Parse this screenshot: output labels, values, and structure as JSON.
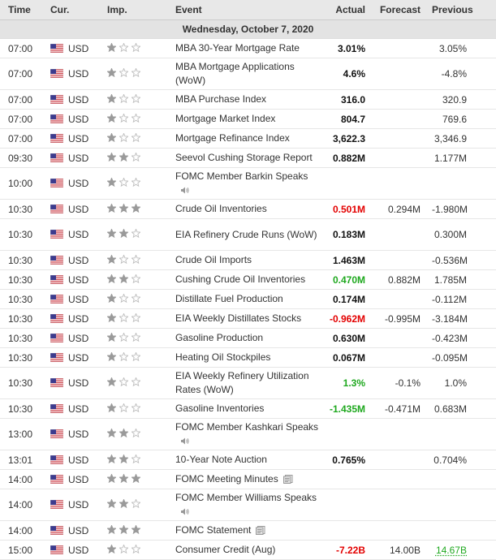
{
  "headers": {
    "time": "Time",
    "currency": "Cur.",
    "importance": "Imp.",
    "event": "Event",
    "actual": "Actual",
    "forecast": "Forecast",
    "previous": "Previous"
  },
  "date_label": "Wednesday, October 7, 2020",
  "colors": {
    "negative": "#e30000",
    "positive": "#1ea81e"
  },
  "rows": [
    {
      "time": "07:00",
      "currency": "USD",
      "importance": 1,
      "event": "MBA 30-Year Mortgage Rate",
      "actual": "3.01%",
      "actual_color": "",
      "forecast": "",
      "previous": "3.05%",
      "icon": "",
      "tall": false
    },
    {
      "time": "07:00",
      "currency": "USD",
      "importance": 1,
      "event": "MBA Mortgage Applications (WoW)",
      "actual": "4.6%",
      "actual_color": "",
      "forecast": "",
      "previous": "-4.8%",
      "icon": "",
      "tall": true
    },
    {
      "time": "07:00",
      "currency": "USD",
      "importance": 1,
      "event": "MBA Purchase Index",
      "actual": "316.0",
      "actual_color": "",
      "forecast": "",
      "previous": "320.9",
      "icon": "",
      "tall": false
    },
    {
      "time": "07:00",
      "currency": "USD",
      "importance": 1,
      "event": "Mortgage Market Index",
      "actual": "804.7",
      "actual_color": "",
      "forecast": "",
      "previous": "769.6",
      "icon": "",
      "tall": false
    },
    {
      "time": "07:00",
      "currency": "USD",
      "importance": 1,
      "event": "Mortgage Refinance Index",
      "actual": "3,622.3",
      "actual_color": "",
      "forecast": "",
      "previous": "3,346.9",
      "icon": "",
      "tall": false
    },
    {
      "time": "09:30",
      "currency": "USD",
      "importance": 2,
      "event": "Seevol Cushing Storage Report",
      "actual": "0.882M",
      "actual_color": "",
      "forecast": "",
      "previous": "1.177M",
      "icon": "",
      "tall": false
    },
    {
      "time": "10:00",
      "currency": "USD",
      "importance": 1,
      "event": "FOMC Member Barkin Speaks",
      "actual": "",
      "actual_color": "",
      "forecast": "",
      "previous": "",
      "icon": "speaker",
      "tall": true
    },
    {
      "time": "10:30",
      "currency": "USD",
      "importance": 3,
      "event": "Crude Oil Inventories",
      "actual": "0.501M",
      "actual_color": "red",
      "forecast": "0.294M",
      "previous": "-1.980M",
      "icon": "",
      "tall": false
    },
    {
      "time": "10:30",
      "currency": "USD",
      "importance": 2,
      "event": "EIA Refinery Crude Runs (WoW)",
      "actual": "0.183M",
      "actual_color": "",
      "forecast": "",
      "previous": "0.300M",
      "icon": "",
      "tall": true
    },
    {
      "time": "10:30",
      "currency": "USD",
      "importance": 1,
      "event": "Crude Oil Imports",
      "actual": "1.463M",
      "actual_color": "",
      "forecast": "",
      "previous": "-0.536M",
      "icon": "",
      "tall": false
    },
    {
      "time": "10:30",
      "currency": "USD",
      "importance": 2,
      "event": "Cushing Crude Oil Inventories",
      "actual": "0.470M",
      "actual_color": "green",
      "forecast": "0.882M",
      "previous": "1.785M",
      "icon": "",
      "tall": false
    },
    {
      "time": "10:30",
      "currency": "USD",
      "importance": 1,
      "event": "Distillate Fuel Production",
      "actual": "0.174M",
      "actual_color": "",
      "forecast": "",
      "previous": "-0.112M",
      "icon": "",
      "tall": false
    },
    {
      "time": "10:30",
      "currency": "USD",
      "importance": 1,
      "event": "EIA Weekly Distillates Stocks",
      "actual": "-0.962M",
      "actual_color": "red",
      "forecast": "-0.995M",
      "previous": "-3.184M",
      "icon": "",
      "tall": false
    },
    {
      "time": "10:30",
      "currency": "USD",
      "importance": 1,
      "event": "Gasoline Production",
      "actual": "0.630M",
      "actual_color": "",
      "forecast": "",
      "previous": "-0.423M",
      "icon": "",
      "tall": false
    },
    {
      "time": "10:30",
      "currency": "USD",
      "importance": 1,
      "event": "Heating Oil Stockpiles",
      "actual": "0.067M",
      "actual_color": "",
      "forecast": "",
      "previous": "-0.095M",
      "icon": "",
      "tall": false
    },
    {
      "time": "10:30",
      "currency": "USD",
      "importance": 1,
      "event": "EIA Weekly Refinery Utilization Rates (WoW)",
      "actual": "1.3%",
      "actual_color": "green",
      "forecast": "-0.1%",
      "previous": "1.0%",
      "icon": "",
      "tall": true
    },
    {
      "time": "10:30",
      "currency": "USD",
      "importance": 1,
      "event": "Gasoline Inventories",
      "actual": "-1.435M",
      "actual_color": "green",
      "forecast": "-0.471M",
      "previous": "0.683M",
      "icon": "",
      "tall": false
    },
    {
      "time": "13:00",
      "currency": "USD",
      "importance": 2,
      "event": "FOMC Member Kashkari Speaks",
      "actual": "",
      "actual_color": "",
      "forecast": "",
      "previous": "",
      "icon": "speaker",
      "tall": true
    },
    {
      "time": "13:01",
      "currency": "USD",
      "importance": 2,
      "event": "10-Year Note Auction",
      "actual": "0.765%",
      "actual_color": "",
      "forecast": "",
      "previous": "0.704%",
      "icon": "",
      "tall": false
    },
    {
      "time": "14:00",
      "currency": "USD",
      "importance": 3,
      "event": "FOMC Meeting Minutes",
      "actual": "",
      "actual_color": "",
      "forecast": "",
      "previous": "",
      "icon": "document",
      "tall": false
    },
    {
      "time": "14:00",
      "currency": "USD",
      "importance": 2,
      "event": "FOMC Member Williams Speaks",
      "actual": "",
      "actual_color": "",
      "forecast": "",
      "previous": "",
      "icon": "speaker",
      "tall": true
    },
    {
      "time": "14:00",
      "currency": "USD",
      "importance": 3,
      "event": "FOMC Statement",
      "actual": "",
      "actual_color": "",
      "forecast": "",
      "previous": "",
      "icon": "document",
      "tall": false
    },
    {
      "time": "15:00",
      "currency": "USD",
      "importance": 1,
      "event": "Consumer Credit (Aug)",
      "actual": "-7.22B",
      "actual_color": "red",
      "forecast": "14.00B",
      "previous": "14.67B",
      "previous_color": "green",
      "icon": "",
      "tall": false
    }
  ]
}
